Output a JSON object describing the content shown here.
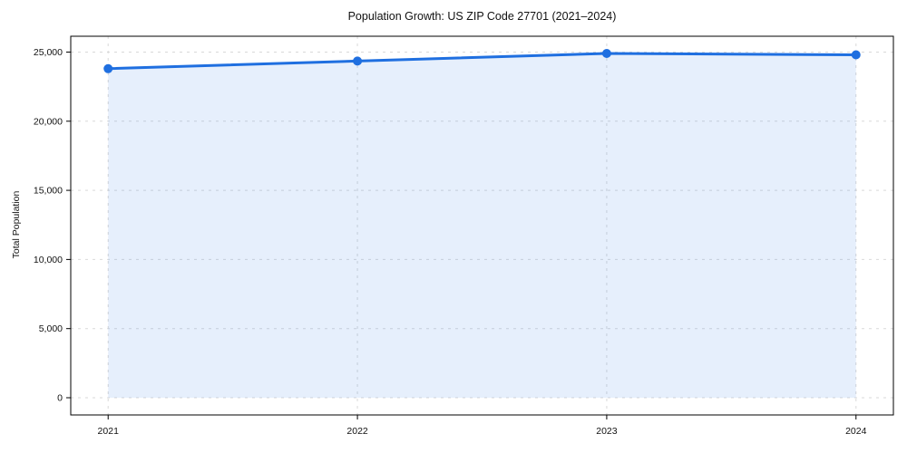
{
  "page": {
    "background": "#ffffff"
  },
  "chart_data": {
    "type": "area",
    "title": "Population Growth: US ZIP Code 27701 (2021–2024)",
    "xlabel": "",
    "ylabel": "Total Population",
    "x": [
      2021,
      2022,
      2023,
      2024
    ],
    "series": [
      {
        "name": "Total Population",
        "values": [
          23800,
          24350,
          24900,
          24800
        ]
      }
    ],
    "xticks": {
      "values": [
        2021,
        2022,
        2023,
        2024
      ],
      "labels": [
        "2021",
        "2022",
        "2023",
        "2024"
      ]
    },
    "yticks": {
      "values": [
        0,
        5000,
        10000,
        15000,
        20000,
        25000
      ],
      "labels": [
        "0",
        "5,000",
        "10,000",
        "15,000",
        "20,000",
        "25,000"
      ]
    },
    "xlim": [
      2020.85,
      2024.15
    ],
    "ylim": [
      -1245,
      26145
    ],
    "grid": true,
    "grid_style": "dashed",
    "legend": "none",
    "colors": {
      "line": "#1f6fe0",
      "marker": "#1f6fe0",
      "fill": "#1f6fe0",
      "fill_opacity": 0.11,
      "grid": "#d9d9d9",
      "spine": "#000000",
      "text": "#111111"
    }
  }
}
